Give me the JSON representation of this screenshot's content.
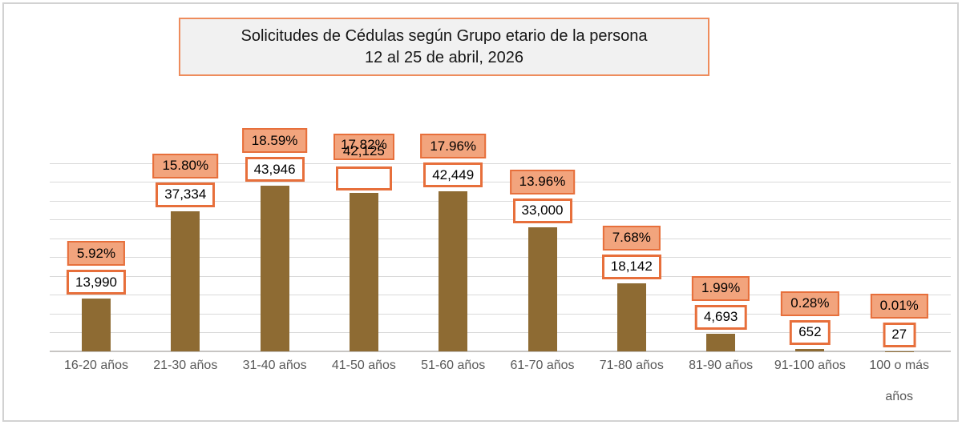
{
  "title": {
    "line1": "Solicitudes de Cédulas según Grupo etario de la persona",
    "line2": "12 al 25 de abril, 2026"
  },
  "chart_data": {
    "type": "bar",
    "title": "Solicitudes de Cédulas según Grupo etario de la persona",
    "subtitle": "12 al 25 de abril, 2026",
    "xlabel": "",
    "ylabel": "",
    "ylim": [
      0,
      50000
    ],
    "grid_step": 5000,
    "grid": true,
    "legend": false,
    "categories": [
      "16-20 años",
      "21-30 años",
      "31-40 años",
      "41-50 años",
      "51-60 años",
      "61-70 años",
      "71-80 años",
      "81-90 años",
      "91-100 años",
      "100 o más años"
    ],
    "values": [
      13990,
      37334,
      43946,
      42125,
      42449,
      33000,
      18142,
      4693,
      652,
      27
    ],
    "value_labels": [
      "13,990",
      "37,334",
      "43,946",
      "42,125",
      "42,449",
      "33,000",
      "18,142",
      "4,693",
      "652",
      "27"
    ],
    "pct_labels": [
      "5.92%",
      "15.80%",
      "18.59%",
      "17.82%",
      "17.96%",
      "13.96%",
      "7.68%",
      "1.99%",
      "0.28%",
      "0.01%"
    ],
    "points": [
      {
        "category_lines": [
          "16-20 años"
        ],
        "value": 13990,
        "value_label": "13,990",
        "pct_label": "5.92%"
      },
      {
        "category_lines": [
          "21-30 años"
        ],
        "value": 37334,
        "value_label": "37,334",
        "pct_label": "15.80%"
      },
      {
        "category_lines": [
          "31-40 años"
        ],
        "value": 43946,
        "value_label": "43,946",
        "pct_label": "18.59%"
      },
      {
        "category_lines": [
          "41-50 años"
        ],
        "value": 42125,
        "value_label": "42,125",
        "pct_label": "17.82%",
        "overlap": true
      },
      {
        "category_lines": [
          "51-60 años"
        ],
        "value": 42449,
        "value_label": "42,449",
        "pct_label": "17.96%"
      },
      {
        "category_lines": [
          "61-70 años"
        ],
        "value": 33000,
        "value_label": "33,000",
        "pct_label": "13.96%"
      },
      {
        "category_lines": [
          "71-80 años"
        ],
        "value": 18142,
        "value_label": "18,142",
        "pct_label": "7.68%"
      },
      {
        "category_lines": [
          "81-90 años"
        ],
        "value": 4693,
        "value_label": "4,693",
        "pct_label": "1.99%"
      },
      {
        "category_lines": [
          "91-100 años"
        ],
        "value": 652,
        "value_label": "652",
        "pct_label": "0.28%"
      },
      {
        "category_lines": [
          "100 o más",
          "años"
        ],
        "value": 27,
        "value_label": "27",
        "pct_label": "0.01%"
      }
    ],
    "colors": {
      "bar": "#8e6b33",
      "pct_box_fill": "#f2a47d",
      "box_border": "#e76f3b",
      "title_border": "#ee8c5c",
      "title_fill": "#f1f1f1",
      "grid_line": "#d9d9d9",
      "axis_line": "#c7c5c3",
      "axis_label_text": "#595959",
      "label_text": "#000000"
    }
  }
}
